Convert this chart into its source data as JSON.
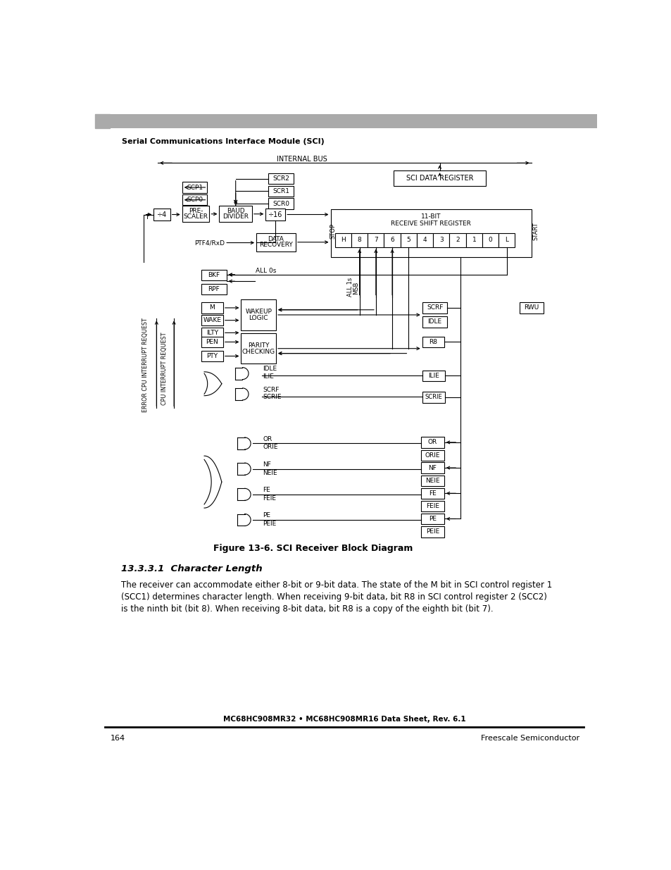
{
  "page_width": 9.54,
  "page_height": 12.35,
  "bg_color": "#ffffff",
  "header_bar_color": "#aaaaaa",
  "header_text": "Serial Communications Interface Module (SCI)",
  "footer_center_text": "MC68HC908MR32 • MC68HC908MR16 Data Sheet, Rev. 6.1",
  "footer_left_text": "164",
  "footer_right_text": "Freescale Semiconductor",
  "figure_caption": "Figure 13-6. SCI Receiver Block Diagram",
  "section_title": "13.3.3.1  Character Length",
  "body_text": "The receiver can accommodate either 8-bit or 9-bit data. The state of the M bit in SCI control register 1\n(SCC1) determines character length. When receiving 9-bit data, bit R8 in SCI control register 2 (SCC2)\nis the ninth bit (bit 8). When receiving 8-bit data, bit R8 is a copy of the eighth bit (bit 7)."
}
